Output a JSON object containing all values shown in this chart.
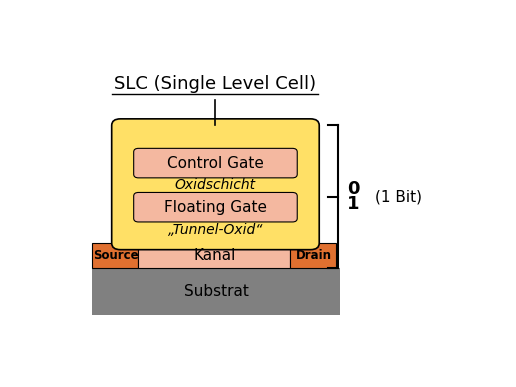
{
  "title": "SLC (Single Level Cell)",
  "title_fontsize": 13,
  "colors": {
    "yellow_body": "#FFE066",
    "light_salmon_box": "#F4B8A0",
    "orange_sd": "#E07030",
    "gray_substrate": "#808080",
    "light_pink_kanal": "#F4B8A0",
    "black": "#000000",
    "white": "#ffffff"
  },
  "bit_label_0": "0",
  "bit_label_1": "1",
  "bit_annotation": "(1 Bit)"
}
